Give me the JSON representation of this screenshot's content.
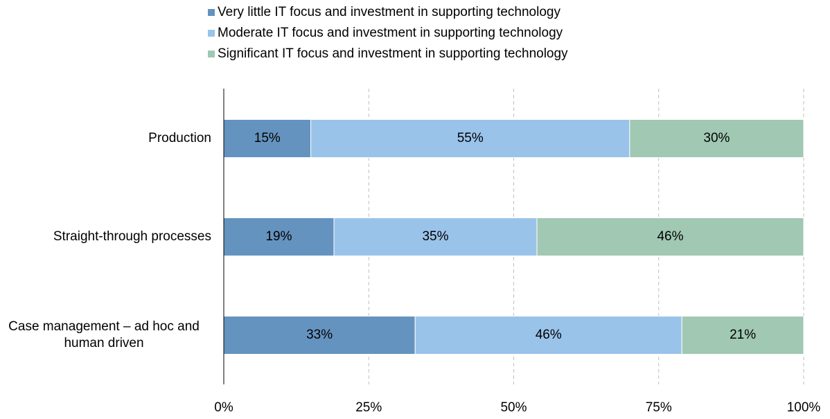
{
  "chart_data": {
    "type": "stacked-bar-horizontal",
    "categories": [
      "Production",
      "Straight-through processes",
      "Case management – ad hoc and human driven"
    ],
    "series": [
      {
        "name": "Very little IT focus and investment in supporting technology",
        "color": "#6593bf",
        "values": [
          15,
          19,
          33
        ],
        "value_labels": [
          "15%",
          "19%",
          "33%"
        ]
      },
      {
        "name": "Moderate IT focus and investment in supporting technology",
        "color": "#9ac3ea",
        "values": [
          55,
          35,
          46
        ],
        "value_labels": [
          "55%",
          "35%",
          "46%"
        ]
      },
      {
        "name": "Significant IT focus and investment in supporting technology",
        "color": "#a0c8b3",
        "values": [
          30,
          46,
          21
        ],
        "value_labels": [
          "30%",
          "46%",
          "21%"
        ]
      }
    ],
    "xlim": [
      0,
      100
    ],
    "xticks": [
      {
        "value": 0,
        "label": "0%"
      },
      {
        "value": 25,
        "label": "25%"
      },
      {
        "value": 50,
        "label": "50%"
      },
      {
        "value": 75,
        "label": "75%"
      },
      {
        "value": 100,
        "label": "100%"
      }
    ],
    "grid": true,
    "legend": "top"
  }
}
